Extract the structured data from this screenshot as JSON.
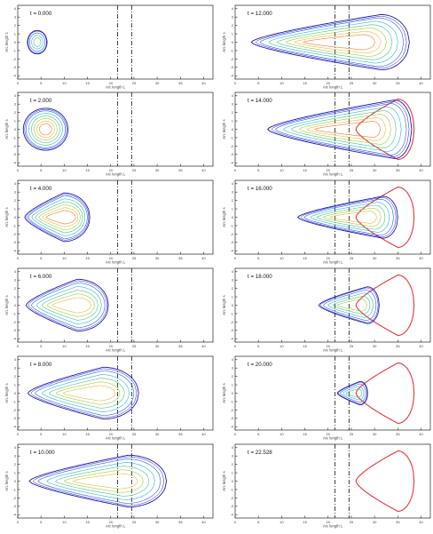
{
  "figure": {
    "colors": {
      "axis": "#222222",
      "tick": "#444444",
      "divider": "#111111",
      "final_boundary": "#e8363b",
      "contours": [
        "#1a1ab8",
        "#2e5fe6",
        "#29b7d6",
        "#4cc08a",
        "#9bcf3a",
        "#e9b93a",
        "#ef7a2a",
        "#e8363b"
      ]
    }
  },
  "chart_data": [
    {
      "type": "contour",
      "panel": 1,
      "time_label": "t = 0.000",
      "t": 0.0,
      "xlabel": "Arc length L",
      "ylabel": "Arc length s",
      "x_ticks": [
        "0",
        "5",
        "10",
        "15",
        "20",
        "25",
        "30",
        "35",
        "40"
      ],
      "y_ticks": [
        "4",
        "3",
        "2",
        "1",
        "0",
        "-1",
        "-2",
        "-3",
        "-4"
      ],
      "xlim": [
        0,
        42
      ],
      "ylim": [
        -4.4,
        4.4
      ],
      "divider_x": [
        21.5,
        24.5
      ],
      "front": {
        "shape": "disk",
        "cx": 4.2,
        "rx": 2.1,
        "ry": 1.4
      },
      "levels": 4,
      "final_boundary": false
    },
    {
      "type": "contour",
      "panel": 2,
      "time_label": "t = 2.000",
      "t": 2.0,
      "xlabel": "Arc length L",
      "ylabel": "Arc length s",
      "x_ticks": [
        "0",
        "5",
        "10",
        "15",
        "20",
        "25",
        "30",
        "35",
        "40"
      ],
      "y_ticks": [
        "4",
        "3",
        "2",
        "1",
        "0",
        "-1",
        "-2",
        "-3",
        "-4"
      ],
      "xlim": [
        0,
        42
      ],
      "ylim": [
        -4.4,
        4.4
      ],
      "divider_x": [
        21.5,
        24.5
      ],
      "front": {
        "shape": "ellipse",
        "cx": 6.0,
        "rx": 4.8,
        "ry": 2.5
      },
      "levels": 7,
      "final_boundary": false
    },
    {
      "type": "contour",
      "panel": 3,
      "time_label": "t = 4.000",
      "t": 4.0,
      "xlabel": "Arc length L",
      "ylabel": "Arc length s",
      "x_ticks": [
        "0",
        "5",
        "10",
        "15",
        "20",
        "25",
        "30",
        "35",
        "40"
      ],
      "y_ticks": [
        "4",
        "3",
        "2",
        "1",
        "0",
        "-1",
        "-2",
        "-3",
        "-4"
      ],
      "xlim": [
        0,
        42
      ],
      "ylim": [
        -4.4,
        4.4
      ],
      "divider_x": [
        21.5,
        24.5
      ],
      "front": {
        "shape": "teardrop",
        "x_left": 1.5,
        "x_right": 15.5,
        "half_width": 2.9,
        "peak_frac": 0.6
      },
      "levels": 7,
      "final_boundary": false
    },
    {
      "type": "contour",
      "panel": 4,
      "time_label": "t = 6.000",
      "t": 6.0,
      "xlabel": "Arc length L",
      "ylabel": "Arc length s",
      "x_ticks": [
        "0",
        "5",
        "10",
        "15",
        "20",
        "25",
        "30",
        "35",
        "40"
      ],
      "y_ticks": [
        "4",
        "3",
        "2",
        "1",
        "0",
        "-1",
        "-2",
        "-3",
        "-4"
      ],
      "xlim": [
        0,
        42
      ],
      "ylim": [
        -4.4,
        4.4
      ],
      "divider_x": [
        21.5,
        24.5
      ],
      "front": {
        "shape": "teardrop",
        "x_left": 1.8,
        "x_right": 19.5,
        "half_width": 3.1,
        "peak_frac": 0.62
      },
      "levels": 6,
      "final_boundary": false
    },
    {
      "type": "contour",
      "panel": 5,
      "time_label": "t = 8.000",
      "t": 8.0,
      "xlabel": "Arc length L",
      "ylabel": "Arc length s",
      "x_ticks": [
        "0",
        "5",
        "10",
        "15",
        "20",
        "25",
        "30",
        "35",
        "40"
      ],
      "y_ticks": [
        "4",
        "3",
        "2",
        "1",
        "0",
        "-1",
        "-2",
        "-3",
        "-4"
      ],
      "xlim": [
        0,
        42
      ],
      "ylim": [
        -4.4,
        4.4
      ],
      "divider_x": [
        21.5,
        24.5
      ],
      "front": {
        "shape": "teardrop",
        "x_left": 2.2,
        "x_right": 26.0,
        "half_width": 3.1,
        "peak_frac": 0.68
      },
      "levels": 6,
      "final_boundary": false
    },
    {
      "type": "contour",
      "panel": 6,
      "time_label": "t = 10.000",
      "t": 10.0,
      "xlabel": "Arc length L",
      "ylabel": "Arc length s",
      "x_ticks": [
        "0",
        "5",
        "10",
        "15",
        "20",
        "25",
        "30",
        "35",
        "40"
      ],
      "y_ticks": [
        "4",
        "3",
        "2",
        "1",
        "0",
        "-1",
        "-2",
        "-3",
        "-4"
      ],
      "xlim": [
        0,
        42
      ],
      "ylim": [
        -4.4,
        4.4
      ],
      "divider_x": [
        21.5,
        24.5
      ],
      "front": {
        "shape": "teardrop",
        "x_left": 2.5,
        "x_right": 32.0,
        "half_width": 3.1,
        "peak_frac": 0.72
      },
      "levels": 6,
      "final_boundary": false
    },
    {
      "type": "contour",
      "panel": 7,
      "time_label": "t = 12.000",
      "t": 12.0,
      "xlabel": "Arc length L",
      "ylabel": "Arc length s",
      "x_ticks": [
        "0",
        "5",
        "10",
        "15",
        "20",
        "25",
        "30",
        "35",
        "40"
      ],
      "y_ticks": [
        "4",
        "3",
        "2",
        "1",
        "0",
        "-1",
        "-2",
        "-3",
        "-4"
      ],
      "xlim": [
        0,
        42
      ],
      "ylim": [
        -4.4,
        4.4
      ],
      "divider_x": [
        21.5,
        24.5
      ],
      "front": {
        "shape": "teardrop",
        "x_left": 3.5,
        "x_right": 37.5,
        "half_width": 3.3,
        "peak_frac": 0.82
      },
      "levels": 7,
      "final_boundary": false
    },
    {
      "type": "contour",
      "panel": 8,
      "time_label": "t = 14.000",
      "t": 14.0,
      "xlabel": "Arc length L",
      "ylabel": "Arc length s",
      "x_ticks": [
        "0",
        "5",
        "10",
        "15",
        "20",
        "25",
        "30",
        "35",
        "40"
      ],
      "y_ticks": [
        "4",
        "3",
        "2",
        "1",
        "0",
        "-1",
        "-2",
        "-3",
        "-4"
      ],
      "xlim": [
        0,
        42
      ],
      "ylim": [
        -4.4,
        4.4
      ],
      "divider_x": [
        21.5,
        24.5
      ],
      "front": {
        "shape": "teardrop",
        "x_left": 7.0,
        "x_right": 38.0,
        "half_width": 3.5,
        "peak_frac": 0.88
      },
      "levels": 7,
      "final_boundary": true
    },
    {
      "type": "contour",
      "panel": 9,
      "time_label": "t = 16.000",
      "t": 16.0,
      "xlabel": "Arc length L",
      "ylabel": "Arc length s",
      "x_ticks": [
        "0",
        "5",
        "10",
        "15",
        "20",
        "25",
        "30",
        "35",
        "40"
      ],
      "y_ticks": [
        "4",
        "3",
        "2",
        "1",
        "0",
        "-1",
        "-2",
        "-3",
        "-4"
      ],
      "xlim": [
        0,
        42
      ],
      "ylim": [
        -4.4,
        4.4
      ],
      "divider_x": [
        21.5,
        24.5
      ],
      "front": {
        "shape": "teardrop",
        "x_left": 13.5,
        "x_right": 35.0,
        "half_width": 2.5,
        "peak_frac": 0.85
      },
      "levels": 6,
      "final_boundary": true
    },
    {
      "type": "contour",
      "panel": 10,
      "time_label": "t = 18.000",
      "t": 18.0,
      "xlabel": "Arc length L",
      "ylabel": "Arc length s",
      "x_ticks": [
        "0",
        "5",
        "10",
        "15",
        "20",
        "25",
        "30",
        "35",
        "40"
      ],
      "y_ticks": [
        "4",
        "3",
        "2",
        "1",
        "0",
        "-1",
        "-2",
        "-3",
        "-4"
      ],
      "xlim": [
        0,
        42
      ],
      "ylim": [
        -4.4,
        4.4
      ],
      "divider_x": [
        21.5,
        24.5
      ],
      "front": {
        "shape": "teardrop",
        "x_left": 18.0,
        "x_right": 31.0,
        "half_width": 2.2,
        "peak_frac": 0.8
      },
      "levels": 5,
      "final_boundary": true
    },
    {
      "type": "contour",
      "panel": 11,
      "time_label": "t = 20.000",
      "t": 20.0,
      "xlabel": "Arc length L",
      "ylabel": "Arc length s",
      "x_ticks": [
        "0",
        "5",
        "10",
        "15",
        "20",
        "25",
        "30",
        "35",
        "40"
      ],
      "y_ticks": [
        "4",
        "3",
        "2",
        "1",
        "0",
        "-1",
        "-2",
        "-3",
        "-4"
      ],
      "xlim": [
        0,
        42
      ],
      "ylim": [
        -4.4,
        4.4
      ],
      "divider_x": [
        21.5,
        24.5
      ],
      "front": {
        "shape": "teardrop",
        "x_left": 22.0,
        "x_right": 28.5,
        "half_width": 1.4,
        "peak_frac": 0.75
      },
      "levels": 4,
      "final_boundary": true
    },
    {
      "type": "contour",
      "panel": 12,
      "time_label": "t = 22.528",
      "t": 22.528,
      "xlabel": "Arc length L",
      "ylabel": "Arc length s",
      "x_ticks": [
        "0",
        "5",
        "10",
        "15",
        "20",
        "25",
        "30",
        "35",
        "40"
      ],
      "y_ticks": [
        "4",
        "3",
        "2",
        "1",
        "0",
        "-1",
        "-2",
        "-3",
        "-4"
      ],
      "xlim": [
        0,
        42
      ],
      "ylim": [
        -4.4,
        4.4
      ],
      "divider_x": [
        21.5,
        24.5
      ],
      "front": null,
      "levels": 0,
      "final_boundary": true
    }
  ]
}
